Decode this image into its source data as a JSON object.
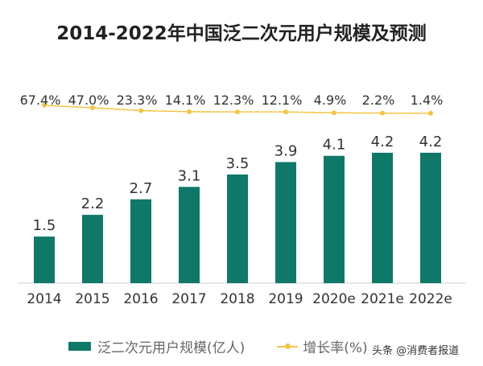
{
  "chart_data": {
    "type": "bar",
    "title": "2014-2022年中国泛二次元用户规模及预测",
    "categories": [
      "2014",
      "2015",
      "2016",
      "2017",
      "2018",
      "2019",
      "2020e",
      "2021e",
      "2022e"
    ],
    "series": [
      {
        "name": "泛二次元用户规模(亿人)",
        "type": "bar",
        "color": "#0f7868",
        "values": [
          1.5,
          2.2,
          2.7,
          3.1,
          3.5,
          3.9,
          4.1,
          4.2,
          4.2
        ],
        "labels": [
          "1.5",
          "2.2",
          "2.7",
          "3.1",
          "3.5",
          "3.9",
          "4.1",
          "4.2",
          "4.2"
        ]
      },
      {
        "name": "增长率(%)",
        "type": "line",
        "color": "#f2c545",
        "values": [
          67.4,
          47.0,
          23.3,
          14.1,
          12.3,
          12.1,
          4.9,
          2.2,
          1.4
        ],
        "labels": [
          "67.4%",
          "47.0%",
          "23.3%",
          "14.1%",
          "12.3%",
          "12.1%",
          "4.9%",
          "2.2%",
          "1.4%"
        ]
      }
    ],
    "legend": "bottom",
    "grid": false
  },
  "watermark": "头条 @消费者报道"
}
